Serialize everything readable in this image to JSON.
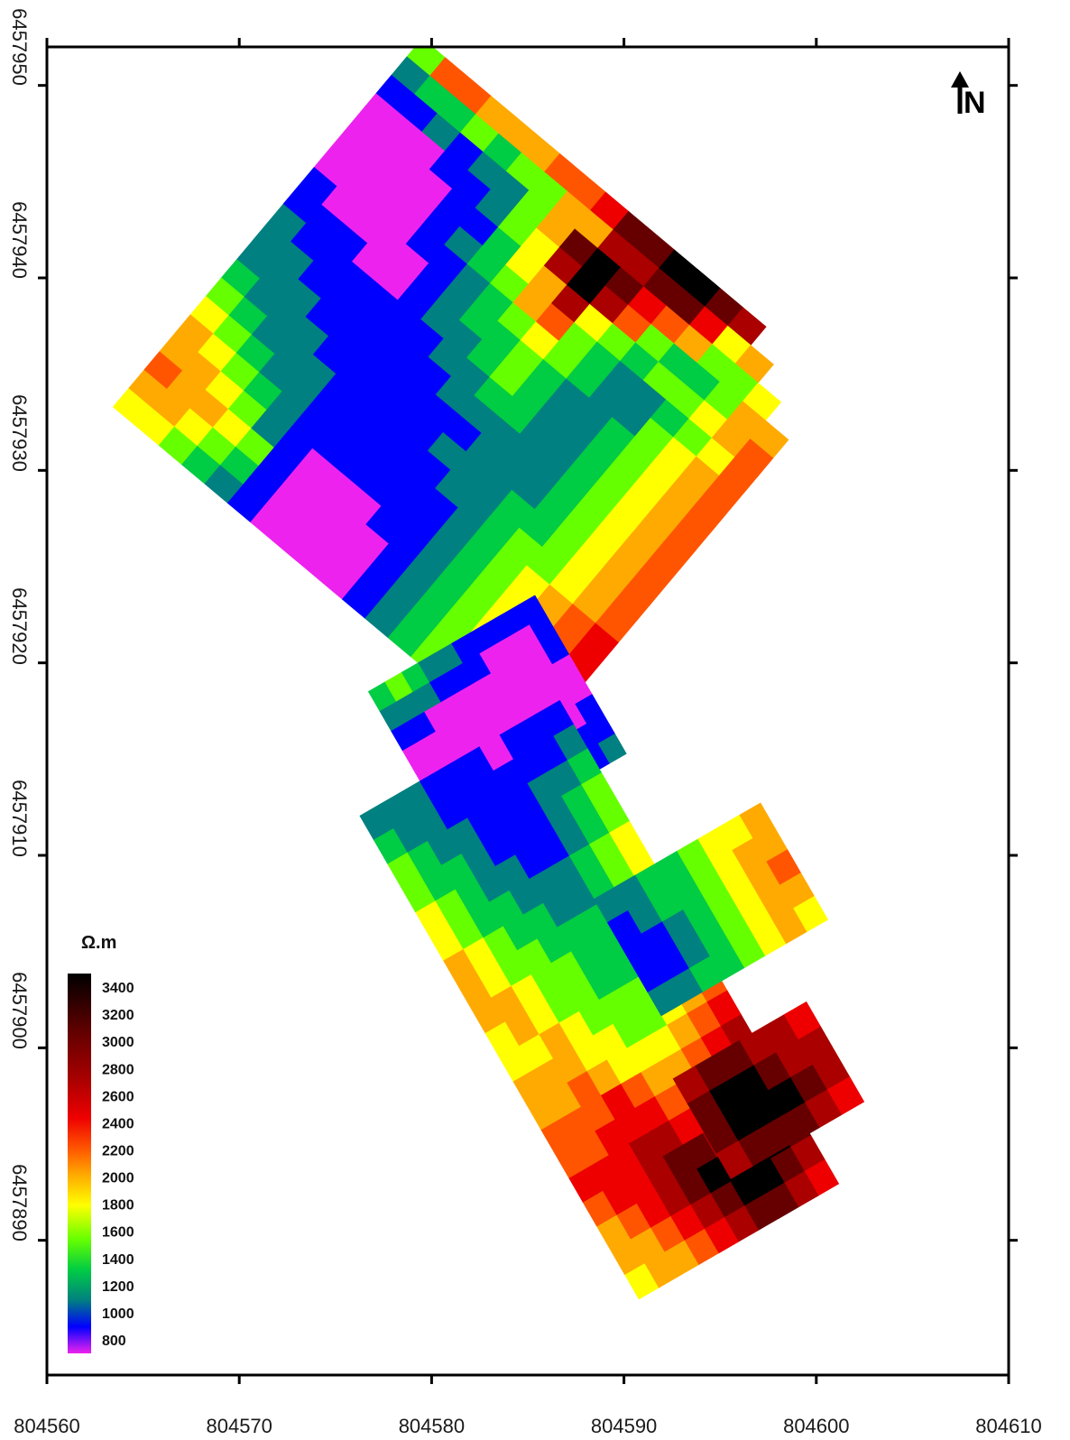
{
  "chart_data": {
    "type": "heatmap",
    "x_ticks": [
      "804560",
      "804570",
      "804580",
      "804590",
      "804600",
      "804610"
    ],
    "y_ticks": [
      "6457950",
      "6457940",
      "6457930",
      "6457920",
      "6457910",
      "6457900",
      "6457890"
    ],
    "xlim": [
      804560,
      804610
    ],
    "ylim": [
      6457883,
      6457952
    ],
    "north_label": "N",
    "legend": {
      "title": "Ω.m",
      "ticks": [
        "3400",
        "3200",
        "3000",
        "2800",
        "2600",
        "2400",
        "2200",
        "2000",
        "1800",
        "1600",
        "1400",
        "1200",
        "1000",
        "800"
      ],
      "range": [
        700,
        3500
      ],
      "colors": [
        "#ee22ee",
        "#0000ff",
        "#008080",
        "#00cc44",
        "#66ff00",
        "#ffff00",
        "#ffaa00",
        "#ff5500",
        "#ee0000",
        "#aa0000",
        "#660000",
        "#000000"
      ]
    },
    "zones": [
      {
        "name": "northwest",
        "angle": 40,
        "center": [
          804582.2,
          6457933.9
        ],
        "size": [
          28,
          25
        ],
        "rows": [
          "EHHGGGHHIKKLLKJ   ",
          "CDDEDEEGGJJKKIFG  ",
          "BBCBCCEGKLKIHGEEF ",
          "AAABBCEFJLJHEDDEGG",
          "AAAABBDFGJFEDEEFGH",
          "AAAABCDEGHEDCCDEFH",
          "AAAABBCDEFEDCCEFGH",
          "BAAAABCDDEDCCDEFGH",
          "BBBAABCCDEDCCDEFGH",
          "CBBBBBBCCDDCCDEFGH",
          "CCBBBBBBCCCCCDEFGH",
          "CCCBBBBBBBCCCDEFGH",
          "DCCCBBBBBCCCDDEFGH",
          "EDCCCBBBBBCCDEEFGH",
          "FEDCCBBBBBBCDEFGHI",
          "GFEDCBBBBBBCDEFGHI",
          "GGFECBAAABBCDEFGHI",
          "HGGFEBAAAABCDEFGHH",
          "GGFEDBAAAABCDEFGH ",
          "FFEDCBAAAABCDEFG  "
        ]
      },
      {
        "name": "middle",
        "angle": -30,
        "center": [
          804583.4,
          6457916.9
        ],
        "size": [
          10,
          9.5
        ],
        "rows": [
          "DEDCCBBBBB",
          "CCCBBBAAAB",
          "BBAAAAAAAB",
          "AAAAAAAAAA",
          "AAAAAAAAAA",
          "BAAAAAAAAB",
          "BBAAAAAABB",
          "BBBAAAABBC"
        ]
      },
      {
        "name": "south",
        "angle": -30,
        "center": [
          804588.7,
          6457902.5
        ],
        "size": [
          12,
          29
        ],
        "rows": [
          "CCCBBBABBB",
          "DCCBBBBBBC",
          "EDCCBBBCCD",
          "EDDCBBBCDE",
          "FEDCCBBCDE",
          "FEDDCCCDEF",
          "GFEDDCCDEF",
          "GFEEDDDEFG",
          "GGFEEDDEFG",
          "FGFEEDDEFG",
          "FFGFEEEFGG",
          "GGGFFEEFGH",
          "GGHGFFFGHI",
          "HHHIHGGHIJ",
          "HHIIIHHIJK",
          "IIIJJIIJKL",
          "HIIJKKJKLL",
          "GHIJKLLLLK",
          "GGHIJKLLKJ",
          "FGGHIJKKJI"
        ]
      },
      {
        "name": "east-arm",
        "angle": -30,
        "center": [
          804594.5,
          6457907.2
        ],
        "size": [
          10,
          7
        ],
        "rows": [
          "CCDDEFFG",
          "BCDDEFGG",
          "BBCDEFGH",
          "BBCDEFGG",
          "CCDDEFGF"
        ]
      },
      {
        "name": "southeast-hotspot",
        "angle": -30,
        "center": [
          804597.5,
          6457897.8
        ],
        "size": [
          8,
          6
        ],
        "rows": [
          "JKKJJI",
          "KLLKJJ",
          "KLLLKJ",
          "JKKKJI"
        ]
      }
    ]
  }
}
